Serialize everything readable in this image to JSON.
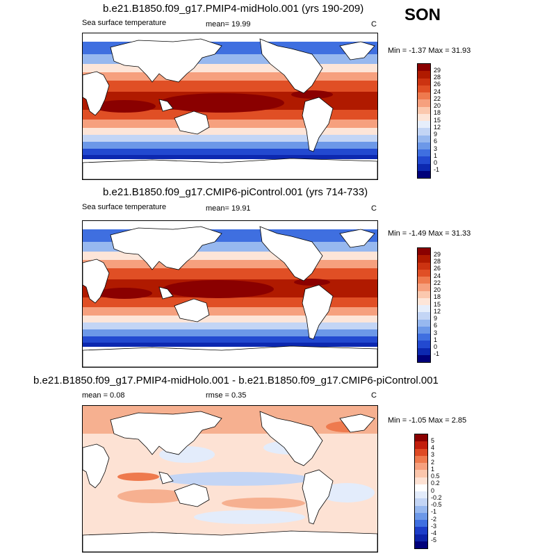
{
  "season": "SON",
  "panels": [
    {
      "title": "b.e21.B1850.f09_g17.PMIP4-midHolo.001 (yrs 190-209)",
      "left_label": "Sea surface temperature",
      "center_label": "mean=  19.99",
      "right_label": "C",
      "minmax": "Min =  -1.37 Max =  31.93",
      "colorbar": {
        "labels": [
          "29",
          "28",
          "26",
          "24",
          "22",
          "20",
          "18",
          "15",
          "12",
          "9",
          "6",
          "3",
          "1",
          "0",
          "-1"
        ],
        "colors": [
          "#8a0000",
          "#b01a00",
          "#cc3311",
          "#e04f25",
          "#ee7a4e",
          "#f6a07e",
          "#fbc8ae",
          "#fde5d8",
          "#e6eefb",
          "#c3d5f5",
          "#97b8ef",
          "#6c98e8",
          "#3f6fe0",
          "#2249d0",
          "#0c28b0",
          "#00007a"
        ]
      }
    },
    {
      "title": "b.e21.B1850.f09_g17.CMIP6-piControl.001 (yrs 714-733)",
      "left_label": "Sea surface temperature",
      "center_label": "mean=  19.91",
      "right_label": "C",
      "minmax": "Min =  -1.49 Max =  31.33",
      "colorbar": {
        "labels": [
          "29",
          "28",
          "26",
          "24",
          "22",
          "20",
          "18",
          "15",
          "12",
          "9",
          "6",
          "3",
          "1",
          "0",
          "-1"
        ],
        "colors": [
          "#8a0000",
          "#b01a00",
          "#cc3311",
          "#e04f25",
          "#ee7a4e",
          "#f6a07e",
          "#fbc8ae",
          "#fde5d8",
          "#e6eefb",
          "#c3d5f5",
          "#97b8ef",
          "#6c98e8",
          "#3f6fe0",
          "#2249d0",
          "#0c28b0",
          "#00007a"
        ]
      }
    },
    {
      "title": "b.e21.B1850.f09_g17.PMIP4-midHolo.001 - b.e21.B1850.f09_g17.CMIP6-piControl.001",
      "left_label": "mean =   0.08",
      "center_label": "rmse =   0.35",
      "right_label": "C",
      "minmax": "Min =  -1.05 Max =   2.85",
      "colorbar": {
        "labels": [
          "5",
          "4",
          "3",
          "2",
          "1",
          "0.5",
          "0.2",
          "0",
          "-0.2",
          "-0.5",
          "-1",
          "-2",
          "-3",
          "-4",
          "-5"
        ],
        "colors": [
          "#8a0000",
          "#c21e0c",
          "#de4a24",
          "#ee7a4e",
          "#f6a07e",
          "#fbc6ac",
          "#fde2d4",
          "#ffffff",
          "#e3ecfb",
          "#c3d5f5",
          "#97b8ef",
          "#6c98e8",
          "#3f6fe0",
          "#1c3dc8",
          "#0c22a8",
          "#00007a"
        ]
      }
    }
  ]
}
